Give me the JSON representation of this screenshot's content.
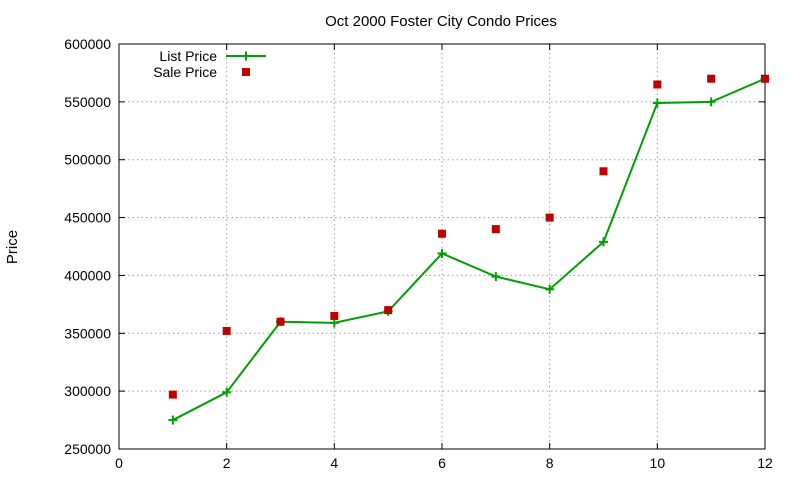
{
  "chart_data": {
    "type": "line",
    "title": "Oct 2000 Foster City Condo Prices",
    "xlabel": "",
    "ylabel": "Price",
    "xlim": [
      0,
      12
    ],
    "ylim": [
      250000,
      600000
    ],
    "xticks": [
      "0",
      "2",
      "4",
      "6",
      "8",
      "10",
      "12"
    ],
    "yticks": [
      "250000",
      "300000",
      "350000",
      "400000",
      "450000",
      "500000",
      "550000",
      "600000"
    ],
    "grid": true,
    "legend_position": "top-left",
    "series": [
      {
        "name": "List Price",
        "style": "linespoints",
        "marker": "plus",
        "color": "#00a000",
        "x": [
          1,
          2,
          3,
          4,
          5,
          6,
          7,
          8,
          9,
          10,
          11,
          12
        ],
        "y": [
          275000,
          299000,
          360000,
          359000,
          369000,
          419000,
          399000,
          388000,
          429000,
          549000,
          550000,
          570000
        ]
      },
      {
        "name": "Sale Price",
        "style": "points",
        "marker": "square",
        "color": "#c00000",
        "x": [
          1,
          2,
          3,
          4,
          5,
          6,
          7,
          8,
          9,
          10,
          11,
          12
        ],
        "y": [
          297000,
          352000,
          360000,
          365000,
          370000,
          436000,
          440000,
          450000,
          490000,
          565000,
          570000,
          570000
        ]
      }
    ]
  }
}
